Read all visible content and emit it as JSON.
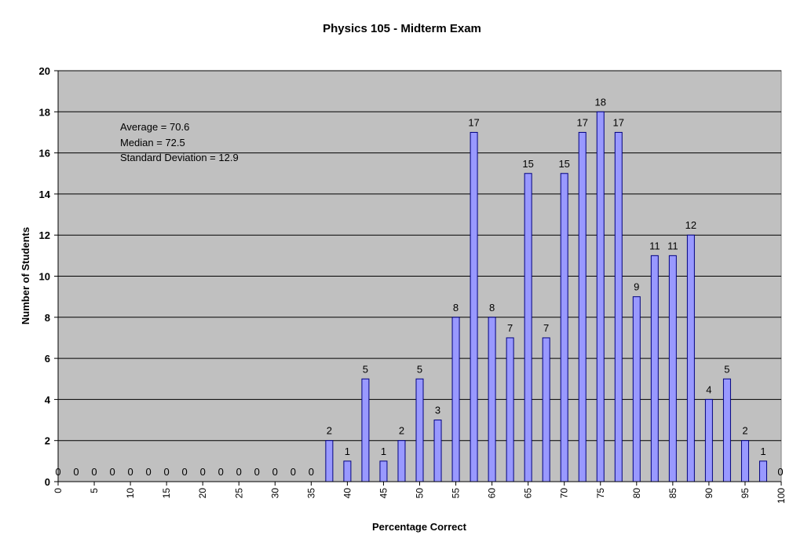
{
  "chart_data": {
    "type": "bar",
    "title": "Physics 105 - Midterm Exam",
    "xlabel": "Percentage Correct",
    "ylabel": "Number of Students",
    "ylim": [
      0,
      20
    ],
    "xlim": [
      0,
      100
    ],
    "yticks": [
      0,
      2,
      4,
      6,
      8,
      10,
      12,
      14,
      16,
      18,
      20
    ],
    "xticks": [
      0,
      5,
      10,
      15,
      20,
      25,
      30,
      35,
      40,
      45,
      50,
      55,
      60,
      65,
      70,
      75,
      80,
      85,
      90,
      95,
      100
    ],
    "grid": true,
    "legend": "none",
    "x": [
      0,
      2.5,
      5,
      7.5,
      10,
      12.5,
      15,
      17.5,
      20,
      22.5,
      25,
      27.5,
      30,
      32.5,
      35,
      37.5,
      40,
      42.5,
      45,
      47.5,
      50,
      52.5,
      55,
      57.5,
      60,
      62.5,
      65,
      67.5,
      70,
      72.5,
      75,
      77.5,
      80,
      82.5,
      85,
      87.5,
      90,
      92.5,
      95,
      97.5,
      100
    ],
    "values": [
      0,
      0,
      0,
      0,
      0,
      0,
      0,
      0,
      0,
      0,
      0,
      0,
      0,
      0,
      0,
      2,
      1,
      5,
      1,
      2,
      5,
      3,
      8,
      17,
      8,
      7,
      15,
      7,
      15,
      17,
      18,
      17,
      9,
      11,
      11,
      12,
      4,
      5,
      2,
      1,
      0
    ],
    "colors": {
      "bar_fill": "#9999ff",
      "bar_stroke": "#000080",
      "plot_bg": "#c0c0c0",
      "grid": "#000000"
    }
  },
  "annotations": {
    "average": "Average = 70.6",
    "median": "Median = 72.5",
    "std": "Standard Deviation = 12.9"
  }
}
